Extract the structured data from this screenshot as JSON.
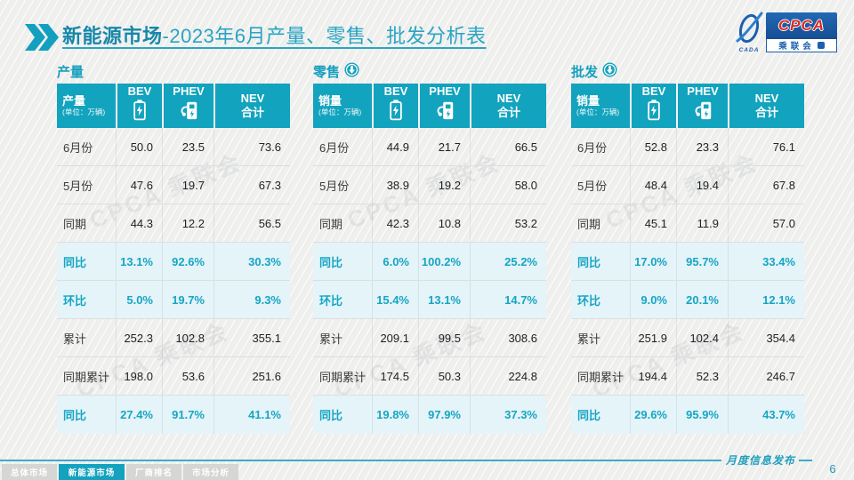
{
  "title": {
    "highlight": "新能源市场",
    "rest": "-2023年6月产量、零售、批发分析表"
  },
  "logo": {
    "acronym": "CPCA",
    "organization": "乘联会",
    "swoosh_caption": "CADA"
  },
  "columns": {
    "bev": "BEV",
    "phev": "PHEV",
    "nev_line1": "NEV",
    "nev_line2": "合计"
  },
  "unit_note": "(单位：万辆)",
  "watermark": "CPCA 乘联会",
  "colors": {
    "accent_teal": "#12a3be",
    "highlight_row_bg": "#e4f4f9",
    "highlight_text": "#17a5c3",
    "title_bold": "#1787a9",
    "title_regular": "#29a4c3",
    "logo_blue": "#1b5fae",
    "logo_red": "#d42b28"
  },
  "tables": [
    {
      "section_title": "产量",
      "corner_label": "产量",
      "rows": [
        {
          "label": "6月份",
          "values": [
            "50.0",
            "23.5",
            "73.6"
          ],
          "highlight": false
        },
        {
          "label": "5月份",
          "values": [
            "47.6",
            "19.7",
            "67.3"
          ],
          "highlight": false
        },
        {
          "label": "同期",
          "values": [
            "44.3",
            "12.2",
            "56.5"
          ],
          "highlight": false
        },
        {
          "label": "同比",
          "values": [
            "13.1%",
            "92.6%",
            "30.3%"
          ],
          "highlight": true
        },
        {
          "label": "环比",
          "values": [
            "5.0%",
            "19.7%",
            "9.3%"
          ],
          "highlight": true
        },
        {
          "label": "累计",
          "values": [
            "252.3",
            "102.8",
            "355.1"
          ],
          "highlight": false
        },
        {
          "label": "同期累计",
          "values": [
            "198.0",
            "53.6",
            "251.6"
          ],
          "highlight": false
        },
        {
          "label": "同比",
          "values": [
            "27.4%",
            "91.7%",
            "41.1%"
          ],
          "highlight": true
        }
      ]
    },
    {
      "section_title": "零售",
      "corner_label": "销量",
      "rows": [
        {
          "label": "6月份",
          "values": [
            "44.9",
            "21.7",
            "66.5"
          ],
          "highlight": false
        },
        {
          "label": "5月份",
          "values": [
            "38.9",
            "19.2",
            "58.0"
          ],
          "highlight": false
        },
        {
          "label": "同期",
          "values": [
            "42.3",
            "10.8",
            "53.2"
          ],
          "highlight": false
        },
        {
          "label": "同比",
          "values": [
            "6.0%",
            "100.2%",
            "25.2%"
          ],
          "highlight": true
        },
        {
          "label": "环比",
          "values": [
            "15.4%",
            "13.1%",
            "14.7%"
          ],
          "highlight": true
        },
        {
          "label": "累计",
          "values": [
            "209.1",
            "99.5",
            "308.6"
          ],
          "highlight": false
        },
        {
          "label": "同期累计",
          "values": [
            "174.5",
            "50.3",
            "224.8"
          ],
          "highlight": false
        },
        {
          "label": "同比",
          "values": [
            "19.8%",
            "97.9%",
            "37.3%"
          ],
          "highlight": true
        }
      ]
    },
    {
      "section_title": "批发",
      "corner_label": "销量",
      "rows": [
        {
          "label": "6月份",
          "values": [
            "52.8",
            "23.3",
            "76.1"
          ],
          "highlight": false
        },
        {
          "label": "5月份",
          "values": [
            "48.4",
            "19.4",
            "67.8"
          ],
          "highlight": false
        },
        {
          "label": "同期",
          "values": [
            "45.1",
            "11.9",
            "57.0"
          ],
          "highlight": false
        },
        {
          "label": "同比",
          "values": [
            "17.0%",
            "95.7%",
            "33.4%"
          ],
          "highlight": true
        },
        {
          "label": "环比",
          "values": [
            "9.0%",
            "20.1%",
            "12.1%"
          ],
          "highlight": true
        },
        {
          "label": "累计",
          "values": [
            "251.9",
            "102.4",
            "354.4"
          ],
          "highlight": false
        },
        {
          "label": "同期累计",
          "values": [
            "194.4",
            "52.3",
            "246.7"
          ],
          "highlight": false
        },
        {
          "label": "同比",
          "values": [
            "29.6%",
            "95.9%",
            "43.7%"
          ],
          "highlight": true
        }
      ]
    }
  ],
  "footer": {
    "tabs": [
      {
        "label": "总体市场",
        "active": false
      },
      {
        "label": "新能源市场",
        "active": true
      },
      {
        "label": "厂商排名",
        "active": false
      },
      {
        "label": "市场分析",
        "active": false
      }
    ],
    "publication": "月度信息发布",
    "page_number": "6"
  }
}
